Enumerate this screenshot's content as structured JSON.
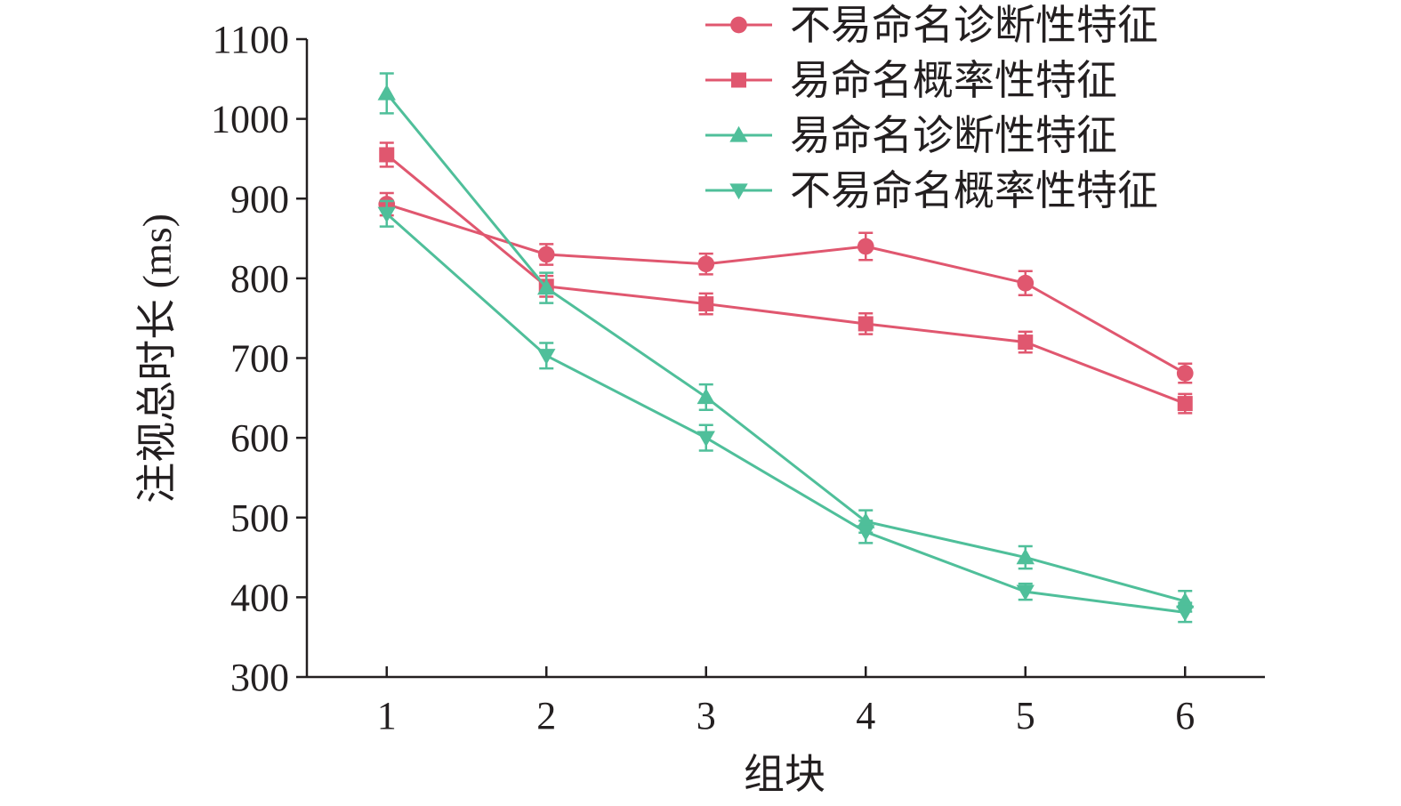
{
  "chart_data": {
    "type": "line",
    "title": "",
    "xlabel": "组块",
    "ylabel": "注视总时长 (ms)",
    "x": [
      1,
      2,
      3,
      4,
      5,
      6
    ],
    "xlim": [
      0.5,
      6.5
    ],
    "ylim": [
      300,
      1100
    ],
    "yticks": [
      300,
      400,
      500,
      600,
      700,
      800,
      900,
      1000,
      1100
    ],
    "grid": false,
    "legend_position": "top-right",
    "series": [
      {
        "name": "不易命名诊断性特征",
        "marker": "circle",
        "color": "#e0576f",
        "values": [
          893,
          830,
          818,
          840,
          794,
          681
        ],
        "errors": [
          14,
          13,
          13,
          17,
          15,
          12
        ]
      },
      {
        "name": "易命名概率性特征",
        "marker": "square",
        "color": "#e0576f",
        "values": [
          955,
          790,
          768,
          743,
          720,
          643
        ],
        "errors": [
          15,
          13,
          13,
          13,
          13,
          12
        ]
      },
      {
        "name": "易命名诊断性特征",
        "marker": "triangle-up",
        "color": "#4fbf9a",
        "values": [
          1032,
          788,
          651,
          495,
          450,
          395
        ],
        "errors": [
          25,
          19,
          16,
          14,
          14,
          13
        ]
      },
      {
        "name": "不易命名概率性特征",
        "marker": "triangle-down",
        "color": "#4fbf9a",
        "values": [
          881,
          703,
          600,
          482,
          407,
          381
        ],
        "errors": [
          16,
          16,
          16,
          14,
          10,
          12
        ]
      }
    ]
  }
}
